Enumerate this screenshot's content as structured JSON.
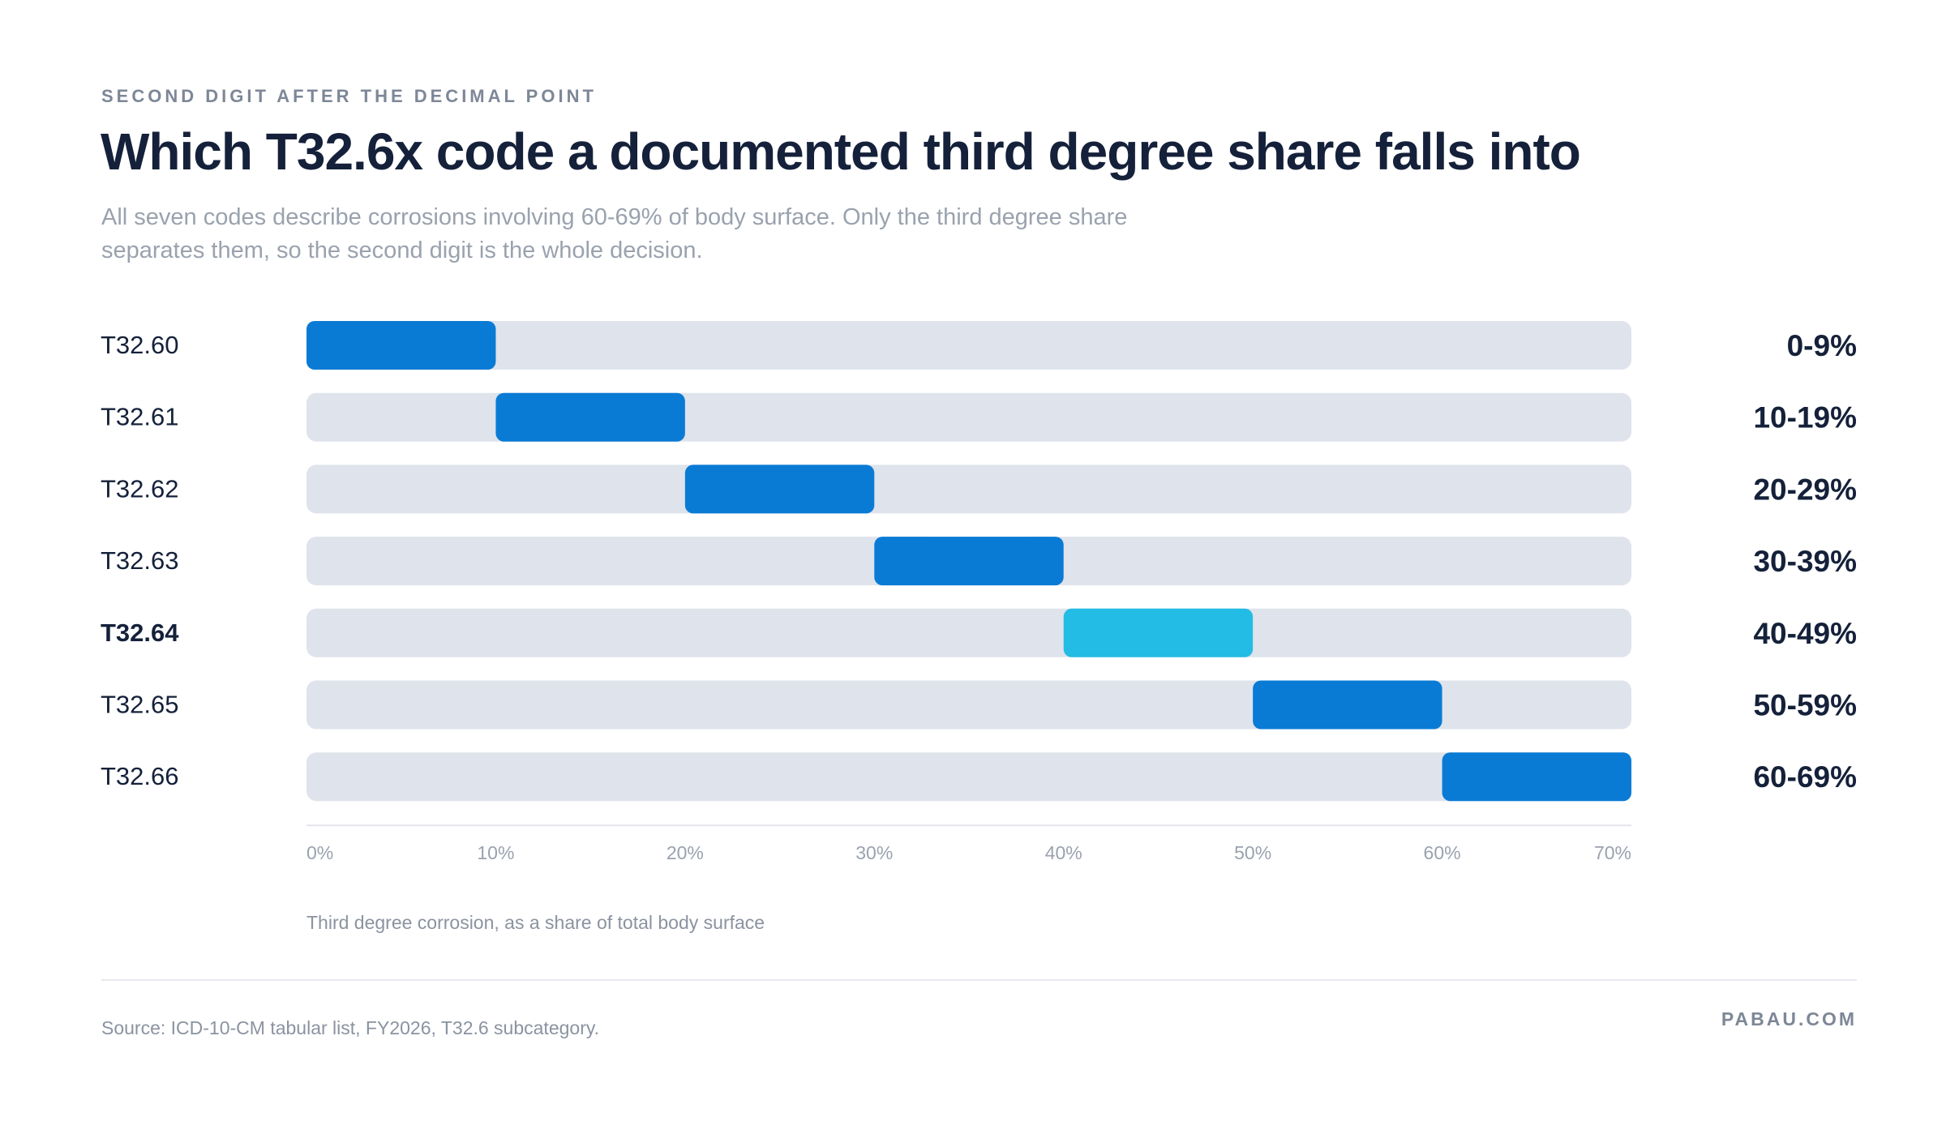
{
  "header": {
    "eyebrow": "SECOND DIGIT AFTER THE DECIMAL POINT",
    "title": "Which T32.6x code a documented third degree share falls into",
    "subtitle": "All seven codes describe corrosions involving 60-69% of body surface. Only the third degree share separates them, so the second digit is the whole decision."
  },
  "footer": {
    "source": "Source: ICD-10-CM tabular list, FY2026, T32.6 subcategory.",
    "brand": "PABAU.COM"
  },
  "chart_data": {
    "type": "bar",
    "orientation": "horizontal-range",
    "xlabel": "Third degree corrosion, as a share of total body surface",
    "xlim": [
      0,
      70
    ],
    "xticks": [
      0,
      10,
      20,
      30,
      40,
      50,
      60,
      70
    ],
    "xtick_labels": [
      "0%",
      "10%",
      "20%",
      "30%",
      "40%",
      "50%",
      "60%",
      "70%"
    ],
    "colors": {
      "track": "#dfe3ec",
      "bar": "#0a7bd5",
      "highlight": "#23bce4",
      "axis": "#e3e6eb"
    },
    "rows": [
      {
        "code": "T32.60",
        "start": 0,
        "end": 10,
        "range_label": "0-9%",
        "highlight": false
      },
      {
        "code": "T32.61",
        "start": 10,
        "end": 20,
        "range_label": "10-19%",
        "highlight": false
      },
      {
        "code": "T32.62",
        "start": 20,
        "end": 30,
        "range_label": "20-29%",
        "highlight": false
      },
      {
        "code": "T32.63",
        "start": 30,
        "end": 40,
        "range_label": "30-39%",
        "highlight": false
      },
      {
        "code": "T32.64",
        "start": 40,
        "end": 50,
        "range_label": "40-49%",
        "highlight": true
      },
      {
        "code": "T32.65",
        "start": 50,
        "end": 60,
        "range_label": "50-59%",
        "highlight": false
      },
      {
        "code": "T32.66",
        "start": 60,
        "end": 70,
        "range_label": "60-69%",
        "highlight": false
      }
    ]
  }
}
